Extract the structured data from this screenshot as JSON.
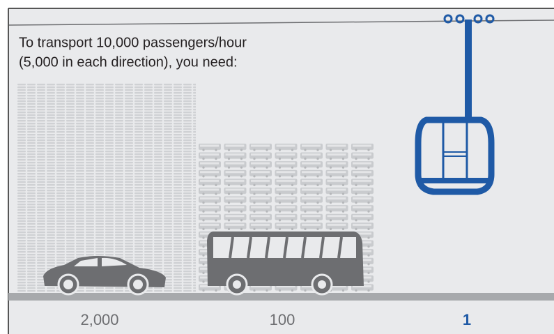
{
  "title": {
    "lines": [
      "To transport 10,000 passengers/hour",
      "(5,000 in each direction), you need:"
    ]
  },
  "items": [
    {
      "label": "2,000"
    },
    {
      "label": "100"
    },
    {
      "label": "1"
    }
  ]
}
